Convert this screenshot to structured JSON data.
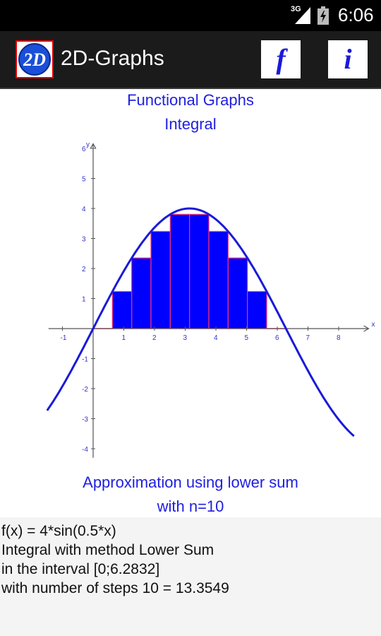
{
  "status_bar": {
    "network": "3G",
    "time": "6:06"
  },
  "app_bar": {
    "logo_text": "2D",
    "title": "2D-Graphs",
    "function_button": "f",
    "info_button": "i"
  },
  "graph": {
    "title_line1": "Functional Graphs",
    "title_line2": "Integral",
    "caption_line1": "Approximation using lower sum",
    "caption_line2": "with n=10"
  },
  "chart_data": {
    "type": "area",
    "function": "4*sin(0.5*x)",
    "x_axis_label": "x",
    "y_axis_label": "y",
    "xlim": [
      -1.5,
      9
    ],
    "ylim": [
      -4.3,
      6.2
    ],
    "x_ticks": [
      -1,
      1,
      2,
      3,
      4,
      5,
      6,
      7,
      8
    ],
    "y_ticks": [
      -4,
      -3,
      -2,
      -1,
      1,
      2,
      3,
      4,
      5,
      6
    ],
    "curve_x_range": [
      -1.5,
      8.5
    ],
    "interval": [
      0,
      6.2832
    ],
    "steps": 10,
    "rectangle_heights": [
      0,
      1.236,
      2.351,
      3.236,
      3.804,
      3.804,
      3.236,
      2.351,
      1.236,
      0
    ],
    "colors": {
      "curve": "#1a1ad8",
      "fill": "#0000ff",
      "edge": "#ff3070",
      "axis": "#555555",
      "tick_label": "#3333cc"
    }
  },
  "info": {
    "lines": [
      "f(x) = 4*sin(0.5*x)",
      "Integral with method Lower Sum",
      "in the interval [0;6.2832]",
      "with number of steps 10 = 13.3549"
    ]
  }
}
